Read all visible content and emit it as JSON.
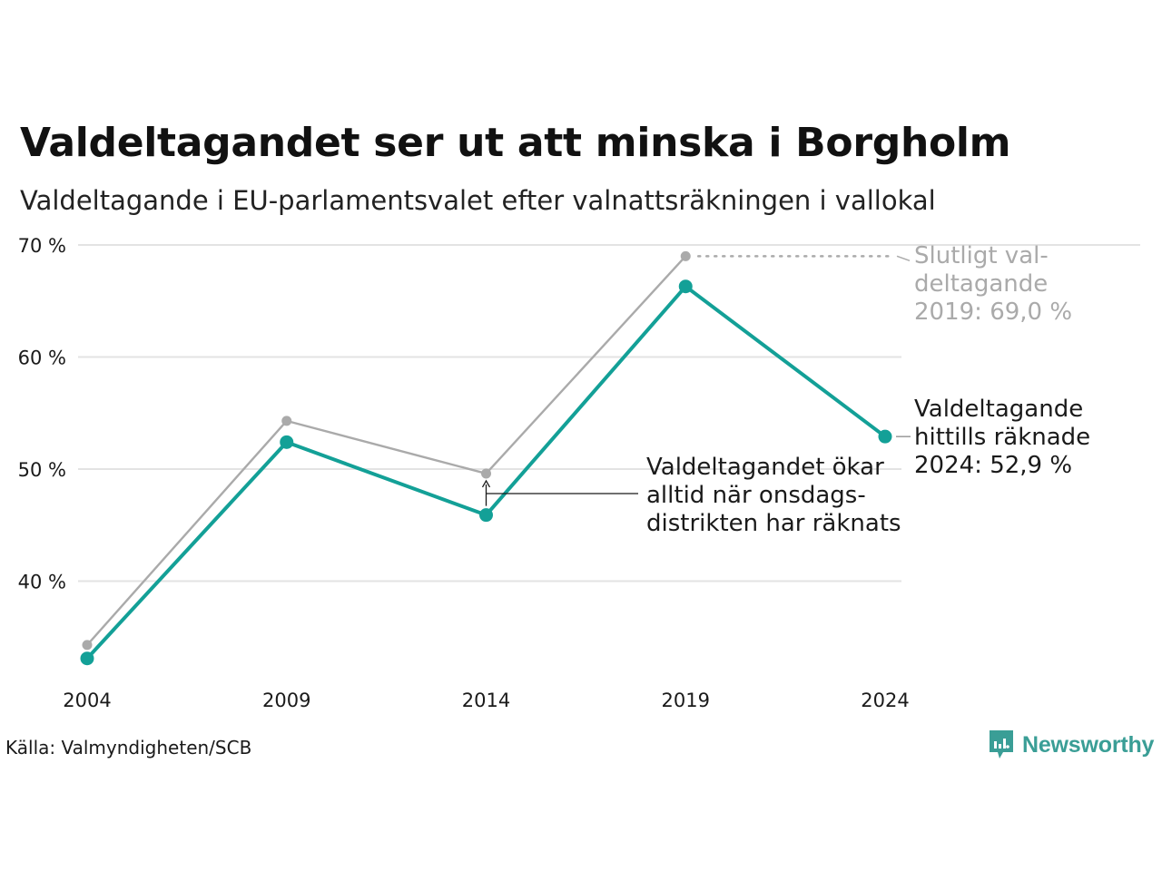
{
  "title": "Valdeltagandet ser ut att minska i Borgholm",
  "subtitle": "Valdeltagande i EU-parlamentsvalet efter valnattsräkningen i vallokal",
  "source": "Källa: Valmyndigheten/SCB",
  "brand": "Newsworthy",
  "chart_data": {
    "type": "line",
    "x": [
      2004,
      2009,
      2014,
      2019,
      2024
    ],
    "ylim": [
      32,
      70
    ],
    "yticks": [
      40,
      50,
      60,
      70
    ],
    "ytick_labels": [
      "40 %",
      "50 %",
      "60 %",
      "70 %"
    ],
    "xtick_labels": [
      "2004",
      "2009",
      "2014",
      "2019",
      "2024"
    ],
    "grid": true,
    "series": [
      {
        "key": "final",
        "color": "#aaaaaa",
        "values": [
          34.3,
          54.3,
          49.6,
          69.0,
          null
        ]
      },
      {
        "key": "preliminary",
        "color": "#13a097",
        "values": [
          33.1,
          52.4,
          45.9,
          66.3,
          52.9
        ]
      }
    ],
    "annotations": {
      "final_2019": [
        "Slutligt val-",
        "deltagande",
        "2019: 69,0 %"
      ],
      "preliminary_2024": [
        "Valdeltagande",
        "hittills räknade",
        "2024: 52,9 %"
      ],
      "increase_note": [
        "Valdeltagandet ökar",
        "alltid när onsdags-",
        "distrikten har räknats"
      ]
    }
  }
}
